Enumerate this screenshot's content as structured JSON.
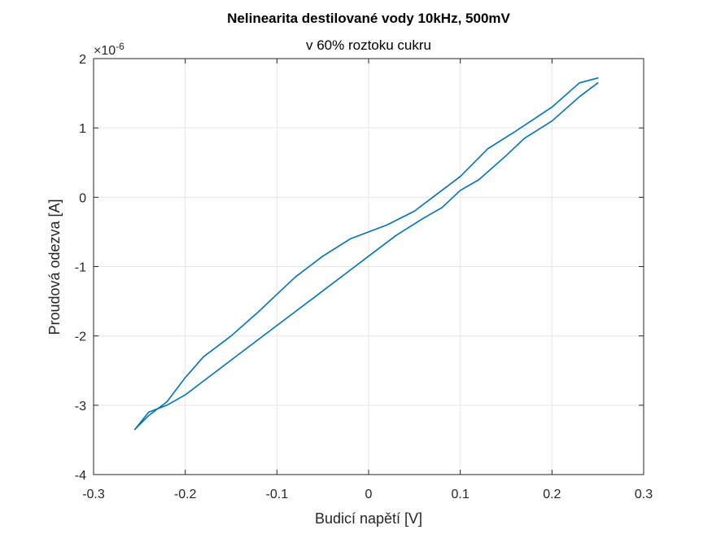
{
  "chart_data": {
    "type": "line",
    "title": "Nelinearita destilované vody 10kHz, 500mV",
    "subtitle": "v 60% roztoku cukru",
    "xlabel": "Budicí napětí [V]",
    "ylabel": "Proudová odezva [A]",
    "y_exponent_label": "×10",
    "y_exponent_power": "-6",
    "xlim": [
      -0.3,
      0.3
    ],
    "ylim": [
      -4,
      2
    ],
    "x_ticks": [
      -0.3,
      -0.2,
      -0.1,
      0,
      0.1,
      0.2,
      0.3
    ],
    "x_tick_labels": [
      "-0.3",
      "-0.2",
      "-0.1",
      "0",
      "0.1",
      "0.2",
      "0.3"
    ],
    "y_ticks": [
      -4,
      -3,
      -2,
      -1,
      0,
      1,
      2
    ],
    "y_tick_labels": [
      "-4",
      "-3",
      "-2",
      "-1",
      "0",
      "1",
      "2"
    ],
    "grid": true,
    "line_color": "#0072BD",
    "series": [
      {
        "name": "upper branch (rising)",
        "x": [
          -0.255,
          -0.24,
          -0.22,
          -0.2,
          -0.18,
          -0.15,
          -0.12,
          -0.1,
          -0.08,
          -0.05,
          -0.02,
          0.0,
          0.02,
          0.05,
          0.07,
          0.1,
          0.13,
          0.16,
          0.2,
          0.23,
          0.25
        ],
        "y": [
          -3.35,
          -3.15,
          -2.95,
          -2.6,
          -2.3,
          -2.0,
          -1.65,
          -1.4,
          -1.15,
          -0.85,
          -0.6,
          -0.5,
          -0.4,
          -0.2,
          0.0,
          0.3,
          0.7,
          0.95,
          1.3,
          1.65,
          1.72
        ]
      },
      {
        "name": "lower branch (falling)",
        "x": [
          0.25,
          0.23,
          0.2,
          0.17,
          0.15,
          0.12,
          0.1,
          0.08,
          0.06,
          0.03,
          0.0,
          -0.02,
          -0.05,
          -0.08,
          -0.1,
          -0.13,
          -0.16,
          -0.18,
          -0.2,
          -0.22,
          -0.24,
          -0.255
        ],
        "y": [
          1.65,
          1.45,
          1.1,
          0.85,
          0.6,
          0.25,
          0.1,
          -0.15,
          -0.3,
          -0.55,
          -0.85,
          -1.05,
          -1.35,
          -1.65,
          -1.85,
          -2.15,
          -2.45,
          -2.65,
          -2.85,
          -3.0,
          -3.1,
          -3.35
        ]
      }
    ]
  }
}
